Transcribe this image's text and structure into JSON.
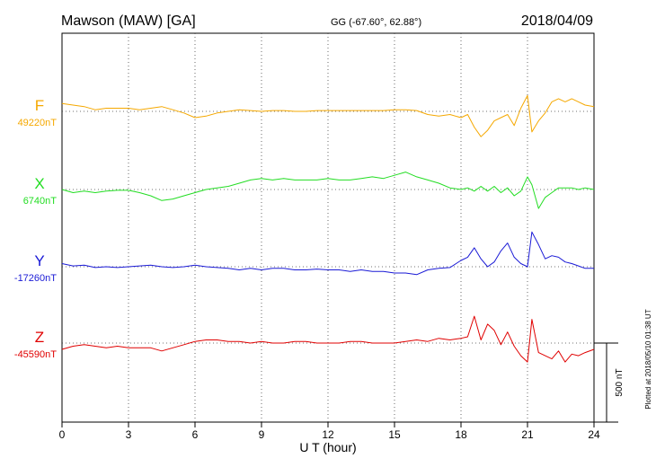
{
  "header": {
    "station": "Mawson (MAW)  [GA]",
    "coords": "GG (-67.60°,  62.88°)",
    "date": "2018/04/09"
  },
  "footer_note": "Plotted at 2018/05/10 01:38 UT",
  "chart_data": {
    "type": "line",
    "xlabel": "U T (hour)",
    "xlim": [
      0,
      24
    ],
    "xticks": [
      "0",
      "3",
      "6",
      "9",
      "12",
      "15",
      "18",
      "21",
      "24"
    ],
    "grid": true,
    "scale_bar": {
      "label": "500 nT",
      "value_nT": 500
    },
    "series": [
      {
        "name": "F",
        "baseline_label": "49220nT",
        "baseline_nT": 49220,
        "color": "#f5a800",
        "x": [
          0,
          0.5,
          1,
          1.5,
          2,
          2.5,
          3,
          3.5,
          4,
          4.5,
          5,
          5.5,
          6,
          6.5,
          7,
          7.5,
          8,
          8.5,
          9,
          9.5,
          10,
          10.5,
          11,
          11.5,
          12,
          12.5,
          13,
          13.5,
          14,
          14.5,
          15,
          15.5,
          16,
          16.5,
          17,
          17.5,
          18,
          18.3,
          18.6,
          18.9,
          19.2,
          19.5,
          19.8,
          20.1,
          20.4,
          20.7,
          21,
          21.2,
          21.5,
          21.8,
          22.1,
          22.4,
          22.7,
          23,
          23.3,
          23.6,
          24
        ],
        "values": [
          50,
          40,
          30,
          10,
          20,
          20,
          20,
          10,
          20,
          30,
          10,
          -10,
          -40,
          -30,
          -10,
          0,
          10,
          5,
          0,
          5,
          5,
          0,
          0,
          5,
          5,
          5,
          5,
          5,
          5,
          5,
          10,
          10,
          5,
          -20,
          -30,
          -20,
          -40,
          -20,
          -100,
          -160,
          -120,
          -60,
          -40,
          -20,
          -90,
          20,
          100,
          -130,
          -60,
          -10,
          60,
          80,
          60,
          80,
          60,
          40,
          30
        ]
      },
      {
        "name": "X",
        "baseline_label": "6740nT",
        "baseline_nT": 6740,
        "color": "#22dd22",
        "x": [
          0,
          0.5,
          1,
          1.5,
          2,
          2.5,
          3,
          3.5,
          4,
          4.5,
          5,
          5.5,
          6,
          6.5,
          7,
          7.5,
          8,
          8.5,
          9,
          9.5,
          10,
          10.5,
          11,
          11.5,
          12,
          12.5,
          13,
          13.5,
          14,
          14.5,
          15,
          15.5,
          16,
          16.5,
          17,
          17.5,
          18,
          18.3,
          18.6,
          18.9,
          19.2,
          19.5,
          19.8,
          20.1,
          20.4,
          20.7,
          21,
          21.2,
          21.5,
          21.8,
          22.1,
          22.4,
          22.7,
          23,
          23.3,
          23.6,
          24
        ],
        "values": [
          0,
          -20,
          -10,
          -20,
          -10,
          -5,
          -5,
          -20,
          -40,
          -70,
          -60,
          -40,
          -20,
          0,
          10,
          20,
          40,
          60,
          70,
          60,
          70,
          60,
          60,
          60,
          70,
          60,
          60,
          70,
          80,
          70,
          90,
          110,
          80,
          60,
          40,
          10,
          0,
          10,
          -10,
          20,
          -10,
          20,
          -20,
          10,
          -40,
          -10,
          80,
          30,
          -120,
          -50,
          -20,
          10,
          10,
          10,
          0,
          10,
          0
        ]
      },
      {
        "name": "Y",
        "baseline_label": "-17260nT",
        "baseline_nT": -17260,
        "color": "#1a1ad6",
        "x": [
          0,
          0.5,
          1,
          1.5,
          2,
          2.5,
          3,
          3.5,
          4,
          4.5,
          5,
          5.5,
          6,
          6.5,
          7,
          7.5,
          8,
          8.5,
          9,
          9.5,
          10,
          10.5,
          11,
          11.5,
          12,
          12.5,
          13,
          13.5,
          14,
          14.5,
          15,
          15.5,
          16,
          16.5,
          17,
          17.5,
          18,
          18.3,
          18.6,
          18.9,
          19.2,
          19.5,
          19.8,
          20.1,
          20.4,
          20.7,
          21,
          21.2,
          21.5,
          21.8,
          22.1,
          22.4,
          22.7,
          23,
          23.3,
          23.6,
          24
        ],
        "values": [
          20,
          5,
          10,
          -5,
          0,
          -5,
          0,
          5,
          10,
          0,
          -5,
          0,
          10,
          0,
          -5,
          -10,
          -20,
          -10,
          -20,
          -10,
          -10,
          -20,
          -20,
          -15,
          -20,
          -20,
          -30,
          -20,
          -30,
          -30,
          -40,
          -40,
          -50,
          -20,
          -10,
          -5,
          40,
          60,
          120,
          50,
          0,
          30,
          100,
          150,
          60,
          20,
          0,
          220,
          140,
          50,
          70,
          60,
          30,
          20,
          5,
          -10,
          -10
        ]
      },
      {
        "name": "Z",
        "baseline_label": "-45590nT",
        "baseline_nT": -45590,
        "color": "#e00000",
        "x": [
          0,
          0.5,
          1,
          1.5,
          2,
          2.5,
          3,
          3.5,
          4,
          4.5,
          5,
          5.5,
          6,
          6.5,
          7,
          7.5,
          8,
          8.5,
          9,
          9.5,
          10,
          10.5,
          11,
          11.5,
          12,
          12.5,
          13,
          13.5,
          14,
          14.5,
          15,
          15.5,
          16,
          16.5,
          17,
          17.5,
          18,
          18.3,
          18.6,
          18.9,
          19.2,
          19.5,
          19.8,
          20.1,
          20.4,
          20.7,
          21,
          21.2,
          21.5,
          21.8,
          22.1,
          22.4,
          22.7,
          23,
          23.3,
          23.6,
          24
        ],
        "values": [
          -40,
          -20,
          -10,
          -20,
          -30,
          -20,
          -30,
          -30,
          -30,
          -50,
          -30,
          -10,
          10,
          20,
          20,
          10,
          10,
          0,
          10,
          0,
          0,
          10,
          10,
          0,
          0,
          0,
          10,
          10,
          0,
          0,
          0,
          10,
          20,
          10,
          30,
          20,
          30,
          40,
          170,
          20,
          120,
          80,
          -10,
          70,
          -20,
          -80,
          -120,
          150,
          -60,
          -80,
          -100,
          -50,
          -120,
          -70,
          -80,
          -60,
          -40
        ]
      }
    ]
  }
}
